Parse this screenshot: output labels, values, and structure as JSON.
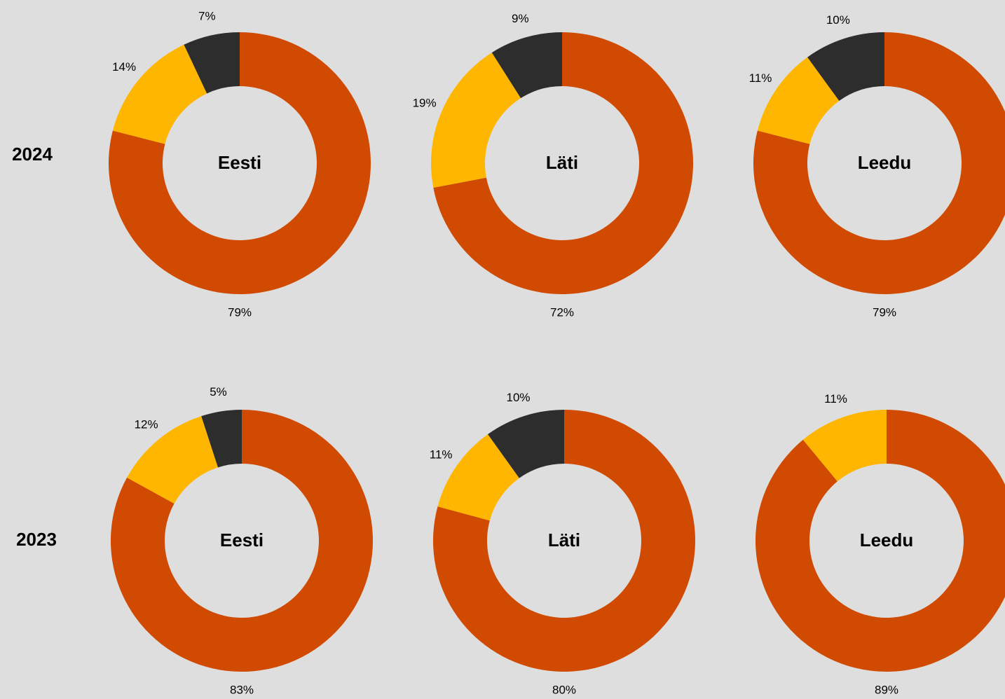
{
  "row_labels": [
    "2024",
    "2023"
  ],
  "chart_data": [
    {
      "type": "donut",
      "title": "Eesti",
      "values": [
        79,
        14,
        7
      ],
      "value_labels": [
        "79%",
        "14%",
        "7%"
      ],
      "colors": [
        "#d04a02",
        "#ffb600",
        "#2d2d2d"
      ]
    },
    {
      "type": "donut",
      "title": "Läti",
      "values": [
        72,
        19,
        9
      ],
      "value_labels": [
        "72%",
        "19%",
        "9%"
      ],
      "colors": [
        "#d04a02",
        "#ffb600",
        "#2d2d2d"
      ]
    },
    {
      "type": "donut",
      "title": "Leedu",
      "values": [
        79,
        11,
        10
      ],
      "value_labels": [
        "79%",
        "11%",
        "10%"
      ],
      "colors": [
        "#d04a02",
        "#ffb600",
        "#2d2d2d"
      ]
    },
    {
      "type": "donut",
      "title": "Eesti",
      "values": [
        83,
        12,
        5
      ],
      "value_labels": [
        "83%",
        "12%",
        "5%"
      ],
      "colors": [
        "#d04a02",
        "#ffb600",
        "#2d2d2d"
      ]
    },
    {
      "type": "donut",
      "title": "Läti",
      "values": [
        80,
        11,
        10
      ],
      "value_labels": [
        "80%",
        "11%",
        "10%"
      ],
      "colors": [
        "#d04a02",
        "#ffb600",
        "#2d2d2d"
      ]
    },
    {
      "type": "donut",
      "title": "Leedu",
      "values": [
        89,
        11
      ],
      "value_labels": [
        "89%",
        "11%"
      ],
      "colors": [
        "#d04a02",
        "#ffb600"
      ]
    }
  ]
}
